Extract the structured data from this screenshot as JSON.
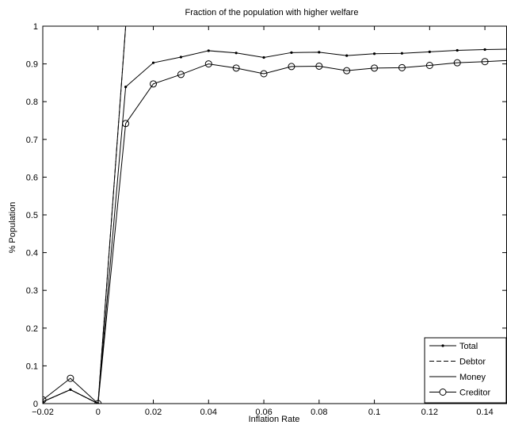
{
  "chart_data": {
    "type": "line",
    "title": "Fraction of the population with higher welfare",
    "xlabel": "Inflation Rate",
    "ylabel": "% Population",
    "xlim": [
      -0.02,
      0.148
    ],
    "ylim": [
      0,
      1
    ],
    "xticks": [
      -0.02,
      0,
      0.02,
      0.04,
      0.06,
      0.08,
      0.1,
      0.12,
      0.14
    ],
    "xtick_labels": [
      "−0.02",
      "0",
      "0.02",
      "0.04",
      "0.06",
      "0.08",
      "0.1",
      "0.12",
      "0.14"
    ],
    "yticks": [
      0,
      0.1,
      0.2,
      0.3,
      0.4,
      0.5,
      0.6,
      0.7,
      0.8,
      0.9,
      1
    ],
    "ytick_labels": [
      "0",
      "0.1",
      "0.2",
      "0.3",
      "0.4",
      "0.5",
      "0.6",
      "0.7",
      "0.8",
      "0.9",
      "1"
    ],
    "grid": false,
    "legend_position": "bottom-right",
    "x": [
      -0.02,
      -0.01,
      0,
      0.01,
      0.02,
      0.03,
      0.04,
      0.05,
      0.06,
      0.07,
      0.08,
      0.09,
      0.1,
      0.11,
      0.12,
      0.13,
      0.14,
      0.148
    ],
    "series": [
      {
        "name": "Total",
        "style": "solid-dot",
        "values": [
          0.005,
          0.037,
          0.0,
          0.839,
          0.903,
          0.918,
          0.935,
          0.929,
          0.917,
          0.93,
          0.931,
          0.922,
          0.927,
          0.928,
          0.932,
          0.936,
          0.938,
          0.939
        ]
      },
      {
        "name": "Debtor",
        "style": "dashed",
        "values": [
          0.005,
          0.037,
          0.0,
          1.0,
          1.0,
          1.0,
          1.0,
          1.0,
          1.0,
          1.0,
          1.0,
          1.0,
          1.0,
          1.0,
          1.0,
          1.0,
          1.0,
          1.0
        ]
      },
      {
        "name": "Money",
        "style": "solid",
        "values": [
          0.005,
          0.037,
          0.0,
          1.0,
          1.0,
          1.0,
          1.0,
          1.0,
          1.0,
          1.0,
          1.0,
          1.0,
          1.0,
          1.0,
          1.0,
          1.0,
          1.0,
          1.0
        ]
      },
      {
        "name": "Creditor",
        "style": "solid-circle",
        "values": [
          0.01,
          0.067,
          0.0,
          0.742,
          0.847,
          0.872,
          0.9,
          0.889,
          0.874,
          0.893,
          0.894,
          0.882,
          0.889,
          0.89,
          0.896,
          0.903,
          0.906,
          0.909
        ]
      }
    ],
    "colors": {
      "lines": "#000000",
      "background": "#ffffff"
    }
  }
}
